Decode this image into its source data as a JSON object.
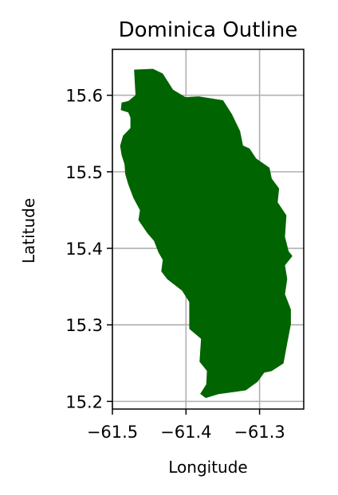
{
  "chart_data": {
    "type": "map",
    "title": "Dominica Outline",
    "xlabel": "Longitude",
    "ylabel": "Latitude",
    "xlim": [
      -61.5,
      -61.24
    ],
    "ylim": [
      15.19,
      15.66
    ],
    "xticks": [
      -61.5,
      -61.4,
      -61.3
    ],
    "xtick_labels": [
      "−61.5",
      "−61.4",
      "−61.3"
    ],
    "yticks": [
      15.2,
      15.3,
      15.4,
      15.5,
      15.6
    ],
    "ytick_labels": [
      "15.2",
      "15.3",
      "15.4",
      "15.5",
      "15.6"
    ],
    "grid": true,
    "fill_color": "#006400",
    "grid_color": "#b0b0b0",
    "outline_lonlat": [
      [
        -61.47,
        15.633
      ],
      [
        -61.445,
        15.634
      ],
      [
        -61.432,
        15.628
      ],
      [
        -61.418,
        15.607
      ],
      [
        -61.401,
        15.597
      ],
      [
        -61.383,
        15.598
      ],
      [
        -61.35,
        15.593
      ],
      [
        -61.338,
        15.575
      ],
      [
        -61.327,
        15.553
      ],
      [
        -61.323,
        15.534
      ],
      [
        -61.314,
        15.53
      ],
      [
        -61.305,
        15.517
      ],
      [
        -61.287,
        15.505
      ],
      [
        -61.284,
        15.491
      ],
      [
        -61.274,
        15.478
      ],
      [
        -61.276,
        15.46
      ],
      [
        -61.264,
        15.443
      ],
      [
        -61.266,
        15.415
      ],
      [
        -61.261,
        15.396
      ],
      [
        -61.256,
        15.39
      ],
      [
        -61.266,
        15.378
      ],
      [
        -61.263,
        15.36
      ],
      [
        -61.266,
        15.34
      ],
      [
        -61.258,
        15.32
      ],
      [
        -61.258,
        15.301
      ],
      [
        -61.263,
        15.276
      ],
      [
        -61.268,
        15.25
      ],
      [
        -61.284,
        15.24
      ],
      [
        -61.294,
        15.238
      ],
      [
        -61.303,
        15.226
      ],
      [
        -61.319,
        15.215
      ],
      [
        -61.34,
        15.212
      ],
      [
        -61.356,
        15.21
      ],
      [
        -61.373,
        15.205
      ],
      [
        -61.38,
        15.21
      ],
      [
        -61.372,
        15.222
      ],
      [
        -61.371,
        15.24
      ],
      [
        -61.381,
        15.252
      ],
      [
        -61.379,
        15.282
      ],
      [
        -61.395,
        15.295
      ],
      [
        -61.395,
        15.33
      ],
      [
        -61.405,
        15.345
      ],
      [
        -61.425,
        15.36
      ],
      [
        -61.433,
        15.37
      ],
      [
        -61.431,
        15.385
      ],
      [
        -61.437,
        15.395
      ],
      [
        -61.443,
        15.41
      ],
      [
        -61.452,
        15.42
      ],
      [
        -61.464,
        15.437
      ],
      [
        -61.462,
        15.45
      ],
      [
        -61.471,
        15.466
      ],
      [
        -61.478,
        15.484
      ],
      [
        -61.482,
        15.497
      ],
      [
        -61.483,
        15.51
      ],
      [
        -61.487,
        15.522
      ],
      [
        -61.489,
        15.534
      ],
      [
        -61.485,
        15.547
      ],
      [
        -61.475,
        15.557
      ],
      [
        -61.475,
        15.571
      ],
      [
        -61.478,
        15.578
      ],
      [
        -61.488,
        15.581
      ],
      [
        -61.487,
        15.59
      ],
      [
        -61.478,
        15.592
      ],
      [
        -61.468,
        15.6
      ]
    ]
  }
}
